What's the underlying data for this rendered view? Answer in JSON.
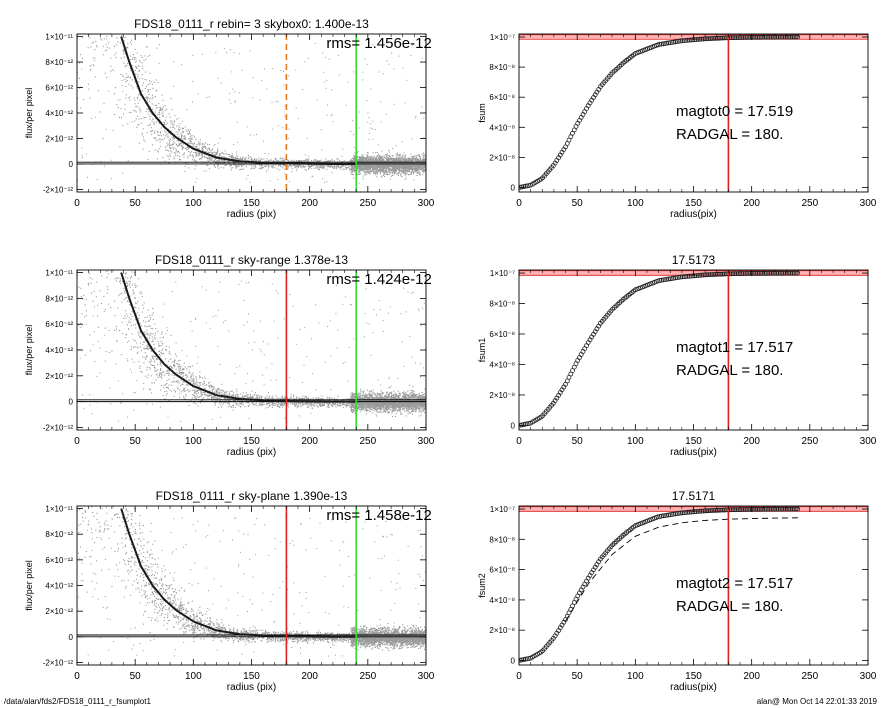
{
  "footer": {
    "left": "/data/alan/fds2/FDS18_0111_r_fsumplot1",
    "right": "alan@  Mon Oct 14 22:01:33 2019"
  },
  "colors": {
    "points": "#9a9a9a",
    "profile": "#1a1a1a",
    "green_line": "#33dd33",
    "red_line": "#dd2222",
    "orange_dash": "#e07b1e",
    "band": "#ffb0b0"
  },
  "chart_data": [
    {
      "type": "scatter",
      "panel": "profile",
      "title": "FDS18_0111_r rebin= 3    skybox0:  1.400e-13",
      "annotation": "rms= 1.456e-12",
      "xlabel": "radius (pix)",
      "ylabel": "flux/per pixel",
      "xlim": [
        0,
        300
      ],
      "ylim": [
        -2.2e-12,
        1.02e-11
      ],
      "xticks": [
        "0",
        "50",
        "100",
        "150",
        "200",
        "250",
        "300"
      ],
      "yticks": [
        "-2×10⁻¹²",
        "0",
        "2×10⁻¹²",
        "4×10⁻¹²",
        "6×10⁻¹²",
        "8×10⁻¹²",
        "1×10⁻¹¹"
      ],
      "profile": {
        "x": [
          38,
          45,
          55,
          65,
          75,
          85,
          100,
          120,
          140,
          160,
          180,
          200,
          220,
          240
        ],
        "y": [
          1e-11,
          8e-12,
          5.5e-12,
          4e-12,
          2.9e-12,
          2.1e-12,
          1.2e-12,
          5e-13,
          2e-13,
          1e-13,
          5e-14,
          2e-14,
          0,
          0
        ]
      },
      "vlines": [
        {
          "x": 180,
          "color": "orange_dash",
          "dashed": true
        },
        {
          "x": 240,
          "color": "green_line",
          "dashed": false
        }
      ],
      "hlines": [
        0,
        1.4e-13
      ]
    },
    {
      "type": "line",
      "panel": "growth",
      "title": "",
      "annotations": [
        "magtot0 =  17.519",
        "RADGAL =    180."
      ],
      "xlabel": "radius(pix)",
      "ylabel": "fsum",
      "xlim": [
        0,
        300
      ],
      "ylim": [
        -3e-09,
        1.02e-07
      ],
      "xticks": [
        "0",
        "50",
        "100",
        "150",
        "200",
        "250",
        "300"
      ],
      "yticks": [
        "0",
        "2×10⁻⁸",
        "4×10⁻⁸",
        "6×10⁻⁸",
        "8×10⁻⁸",
        "1×10⁻⁷"
      ],
      "curve": {
        "x": [
          0,
          10,
          20,
          30,
          40,
          50,
          60,
          70,
          80,
          90,
          100,
          120,
          140,
          160,
          180,
          200,
          220,
          240
        ],
        "y": [
          0,
          1.5e-09,
          6e-09,
          1.5e-08,
          2.7e-08,
          4.2e-08,
          5.5e-08,
          6.7e-08,
          7.6e-08,
          8.3e-08,
          8.9e-08,
          9.5e-08,
          9.75e-08,
          9.88e-08,
          9.95e-08,
          9.98e-08,
          9.99e-08,
          1e-07
        ]
      },
      "vline": 180,
      "band": [
        9.85e-08,
        1.015e-07
      ]
    },
    {
      "type": "scatter",
      "panel": "profile",
      "title": "FDS18_0111_r sky-range  1.378e-13",
      "annotation": "rms= 1.424e-12",
      "xlabel": "radius (pix)",
      "ylabel": "flux/per pixel",
      "xlim": [
        0,
        300
      ],
      "ylim": [
        -2.2e-12,
        1.02e-11
      ],
      "xticks": [
        "0",
        "50",
        "100",
        "150",
        "200",
        "250",
        "300"
      ],
      "yticks": [
        "-2×10⁻¹²",
        "0",
        "2×10⁻¹²",
        "4×10⁻¹²",
        "6×10⁻¹²",
        "8×10⁻¹²",
        "1×10⁻¹¹"
      ],
      "profile": {
        "x": [
          38,
          45,
          55,
          65,
          75,
          85,
          100,
          120,
          140,
          160,
          180,
          200,
          220,
          240
        ],
        "y": [
          1e-11,
          8e-12,
          5.5e-12,
          4e-12,
          2.9e-12,
          2.1e-12,
          1.2e-12,
          5e-13,
          2e-13,
          1e-13,
          5e-14,
          2e-14,
          0,
          0
        ]
      },
      "vlines": [
        {
          "x": 180,
          "color": "red_line",
          "dashed": false
        },
        {
          "x": 240,
          "color": "green_line",
          "dashed": false
        }
      ],
      "hlines": [
        0,
        1.378e-13
      ]
    },
    {
      "type": "line",
      "panel": "growth",
      "title": "17.5173",
      "annotations": [
        "magtot1 =  17.517",
        "RADGAL =    180."
      ],
      "xlabel": "radius(pix)",
      "ylabel": "fsum1",
      "xlim": [
        0,
        300
      ],
      "ylim": [
        -3e-09,
        1.02e-07
      ],
      "xticks": [
        "0",
        "50",
        "100",
        "150",
        "200",
        "250",
        "300"
      ],
      "yticks": [
        "0",
        "2×10⁻⁸",
        "4×10⁻⁸",
        "6×10⁻⁸",
        "8×10⁻⁸",
        "1×10⁻⁷"
      ],
      "curve": {
        "x": [
          0,
          10,
          20,
          30,
          40,
          50,
          60,
          70,
          80,
          90,
          100,
          120,
          140,
          160,
          180,
          200,
          220,
          240
        ],
        "y": [
          0,
          1.5e-09,
          6e-09,
          1.5e-08,
          2.7e-08,
          4.2e-08,
          5.5e-08,
          6.7e-08,
          7.6e-08,
          8.3e-08,
          8.9e-08,
          9.5e-08,
          9.75e-08,
          9.88e-08,
          9.95e-08,
          9.98e-08,
          9.99e-08,
          1e-07
        ]
      },
      "vline": 180,
      "band": [
        9.85e-08,
        1.015e-07
      ]
    },
    {
      "type": "scatter",
      "panel": "profile",
      "title": "FDS18_0111_r sky-plane  1.390e-13",
      "annotation": "rms= 1.458e-12",
      "xlabel": "radius (pix)",
      "ylabel": "flux/per pixel",
      "xlim": [
        0,
        300
      ],
      "ylim": [
        -2.2e-12,
        1.02e-11
      ],
      "xticks": [
        "0",
        "50",
        "100",
        "150",
        "200",
        "250",
        "300"
      ],
      "yticks": [
        "-2×10⁻¹²",
        "0",
        "2×10⁻¹²",
        "4×10⁻¹²",
        "6×10⁻¹²",
        "8×10⁻¹²",
        "1×10⁻¹¹"
      ],
      "profile": {
        "x": [
          38,
          45,
          55,
          65,
          75,
          85,
          100,
          120,
          140,
          160,
          180,
          200,
          220,
          240
        ],
        "y": [
          1e-11,
          8e-12,
          5.5e-12,
          4e-12,
          2.9e-12,
          2.1e-12,
          1.2e-12,
          5e-13,
          2e-13,
          1e-13,
          5e-14,
          2e-14,
          0,
          0
        ]
      },
      "vlines": [
        {
          "x": 180,
          "color": "red_line",
          "dashed": false
        },
        {
          "x": 240,
          "color": "green_line",
          "dashed": false
        }
      ],
      "hlines": [
        0,
        1.39e-13
      ]
    },
    {
      "type": "line",
      "panel": "growth",
      "title": "17.5171",
      "annotations": [
        "magtot2 =  17.517",
        "RADGAL =    180."
      ],
      "xlabel": "radius(pix)",
      "ylabel": "fsum2",
      "xlim": [
        0,
        300
      ],
      "ylim": [
        -3e-09,
        1.02e-07
      ],
      "xticks": [
        "0",
        "50",
        "100",
        "150",
        "200",
        "250",
        "300"
      ],
      "yticks": [
        "0",
        "2×10⁻⁸",
        "4×10⁻⁸",
        "6×10⁻⁸",
        "8×10⁻⁸",
        "1×10⁻⁷"
      ],
      "curve": {
        "x": [
          0,
          10,
          20,
          30,
          40,
          50,
          60,
          70,
          80,
          90,
          100,
          120,
          140,
          160,
          180,
          200,
          220,
          240
        ],
        "y": [
          0,
          1.5e-09,
          6e-09,
          1.5e-08,
          2.7e-08,
          4.2e-08,
          5.5e-08,
          6.7e-08,
          7.6e-08,
          8.3e-08,
          8.9e-08,
          9.5e-08,
          9.75e-08,
          9.88e-08,
          9.95e-08,
          9.98e-08,
          9.99e-08,
          1e-07
        ]
      },
      "dashed_curve": {
        "x": [
          40,
          60,
          80,
          100,
          120,
          140,
          160,
          180,
          200,
          220,
          240
        ],
        "y": [
          2.6e-08,
          5.1e-08,
          7e-08,
          8.2e-08,
          8.8e-08,
          9.1e-08,
          9.25e-08,
          9.33e-08,
          9.37e-08,
          9.4e-08,
          9.42e-08
        ]
      },
      "vline": 180,
      "band": [
        9.85e-08,
        1.015e-07
      ]
    }
  ]
}
